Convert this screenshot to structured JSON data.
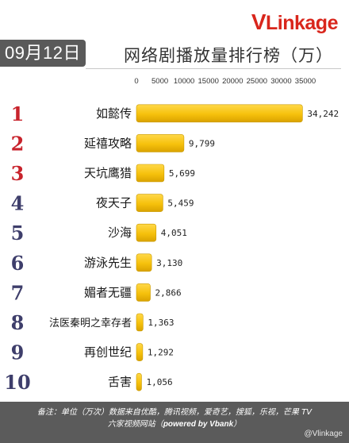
{
  "logo": {
    "v": "V",
    "rest": "Linkage"
  },
  "date": "09月12日",
  "title": "网络剧播放量排行榜（万）",
  "footer": {
    "line1": "备注：单位（万次）数据来自优酷，腾讯视频，爱奇艺，搜狐，乐视，芒果 TV",
    "line2_prefix": "六家视频网站（",
    "line2_powered": "powered by Vbank",
    "line2_suffix": "）",
    "watermark": "@Vlinkage"
  },
  "colors": {
    "bar": "#f6c10c",
    "rank_top": "#c8232c",
    "rank_rest": "#3e3e6b",
    "badge": "#5a5a5a"
  },
  "chart_data": {
    "type": "bar",
    "orientation": "horizontal",
    "title": "网络剧播放量排行榜（万）",
    "categories": [
      "如懿传",
      "延禧攻略",
      "天坑鹰猎",
      "夜天子",
      "沙海",
      "游泳先生",
      "媚者无疆",
      "法医秦明之幸存者",
      "再创世纪",
      "舌害"
    ],
    "ranks": [
      "1",
      "2",
      "3",
      "4",
      "5",
      "6",
      "7",
      "8",
      "9",
      "10"
    ],
    "values": [
      34242,
      9799,
      5699,
      5459,
      4051,
      3130,
      2866,
      1363,
      1292,
      1056
    ],
    "value_labels": [
      "34,242",
      "9,799",
      "5,699",
      "5,459",
      "4,051",
      "3,130",
      "2,866",
      "1,363",
      "1,292",
      "1,056"
    ],
    "ticks": [
      0,
      5000,
      10000,
      15000,
      20000,
      25000,
      30000,
      35000
    ],
    "xlim": [
      0,
      35000
    ],
    "grid": false
  }
}
